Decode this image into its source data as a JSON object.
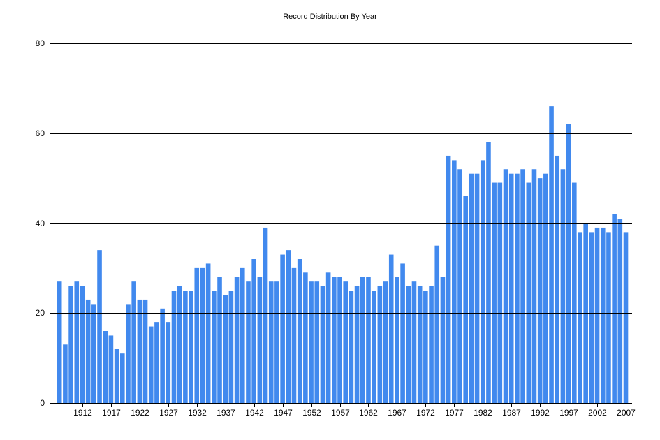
{
  "chart_data": {
    "type": "bar",
    "title": "Record Distribution By Year",
    "xlabel": "",
    "ylabel": "",
    "ylim": [
      0,
      80
    ],
    "yticks": [
      0,
      20,
      40,
      60,
      80
    ],
    "grid": "horizontal",
    "legend": "none",
    "bar_color": "#4189EE",
    "x_tick_labels": [
      "1912",
      "1917",
      "1922",
      "1927",
      "1932",
      "1937",
      "1942",
      "1947",
      "1952",
      "1957",
      "1962",
      "1967",
      "1972",
      "1977",
      "1982",
      "1987",
      "1992",
      "1997",
      "2002",
      "2007"
    ],
    "start_year": 1908,
    "categories": [
      "1908",
      "1909",
      "1910",
      "1911",
      "1912",
      "1913",
      "1914",
      "1915",
      "1916",
      "1917",
      "1918",
      "1919",
      "1920",
      "1921",
      "1922",
      "1923",
      "1924",
      "1925",
      "1926",
      "1927",
      "1928",
      "1929",
      "1930",
      "1931",
      "1932",
      "1933",
      "1934",
      "1935",
      "1936",
      "1937",
      "1938",
      "1939",
      "1940",
      "1941",
      "1942",
      "1943",
      "1944",
      "1945",
      "1946",
      "1947",
      "1948",
      "1949",
      "1950",
      "1951",
      "1952",
      "1953",
      "1954",
      "1955",
      "1956",
      "1957",
      "1958",
      "1959",
      "1960",
      "1961",
      "1962",
      "1963",
      "1964",
      "1965",
      "1966",
      "1967",
      "1968",
      "1969",
      "1970",
      "1971",
      "1972",
      "1973",
      "1974",
      "1975",
      "1976",
      "1977",
      "1978",
      "1979",
      "1980",
      "1981",
      "1982",
      "1983",
      "1984",
      "1985",
      "1986",
      "1987",
      "1988",
      "1989",
      "1990",
      "1991",
      "1992",
      "1993",
      "1994",
      "1995",
      "1996",
      "1997",
      "1998",
      "1999",
      "2000",
      "2001",
      "2002",
      "2003",
      "2004",
      "2005",
      "2006",
      "2007"
    ],
    "values": [
      27,
      13,
      26,
      27,
      26,
      23,
      22,
      34,
      16,
      15,
      12,
      11,
      22,
      27,
      23,
      23,
      17,
      18,
      21,
      18,
      25,
      26,
      25,
      25,
      30,
      30,
      31,
      25,
      28,
      24,
      25,
      28,
      30,
      27,
      32,
      28,
      39,
      27,
      27,
      33,
      34,
      30,
      32,
      29,
      27,
      27,
      26,
      29,
      28,
      28,
      27,
      25,
      26,
      28,
      28,
      25,
      26,
      27,
      33,
      28,
      31,
      26,
      27,
      26,
      25,
      26,
      35,
      28,
      55,
      54,
      52,
      46,
      51,
      51,
      54,
      58,
      49,
      49,
      52,
      51,
      51,
      52,
      49,
      52,
      50,
      51,
      66,
      55,
      52,
      62,
      49,
      38,
      40,
      38,
      39,
      39,
      38,
      42,
      41,
      38
    ]
  }
}
